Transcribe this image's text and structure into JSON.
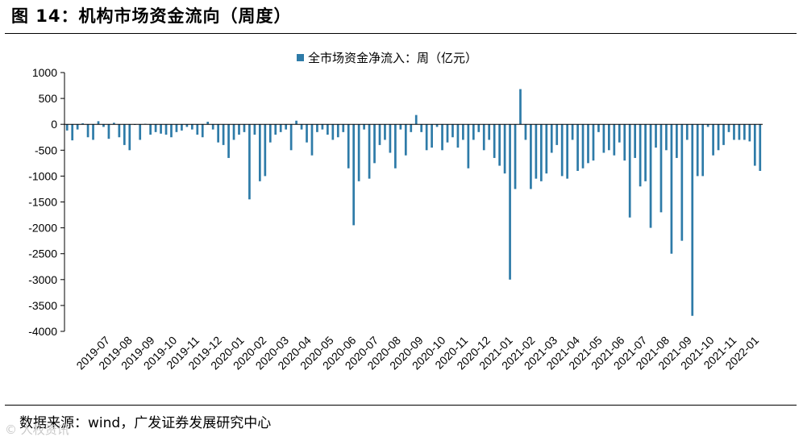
{
  "figure": {
    "title": "图 14：机构市场资金流向（周度）",
    "source": "数据来源：wind，广发证券发展研究中心",
    "watermark": "© 人权资讯"
  },
  "chart_data": {
    "type": "bar",
    "title": "",
    "legend": [
      "全市场资金净流入：周（亿元）"
    ],
    "legend_position": "top-center",
    "xlabel": "",
    "ylabel": "",
    "ylim": [
      -4000,
      1000
    ],
    "yticks": [
      1000,
      500,
      0,
      -500,
      -1000,
      -1500,
      -2000,
      -2500,
      -3000,
      -3500,
      -4000
    ],
    "grid": false,
    "bar_color": "#2E7BA8",
    "x_tick_labels": [
      "2019-07",
      "2019-08",
      "2019-09",
      "2019-10",
      "2019-11",
      "2019-12",
      "2020-01",
      "2020-02",
      "2020-03",
      "2020-04",
      "2020-05",
      "2020-06",
      "2020-07",
      "2020-08",
      "2020-09",
      "2020-10",
      "2020-11",
      "2020-12",
      "2021-01",
      "2021-02",
      "2021-03",
      "2021-04",
      "2021-05",
      "2021-06",
      "2021-07",
      "2021-08",
      "2021-09",
      "2021-10",
      "2021-11",
      "2022-01"
    ],
    "series": [
      {
        "name": "全市场资金净流入：周（亿元）",
        "values": [
          -120,
          -310,
          -100,
          20,
          -250,
          -300,
          60,
          -50,
          -280,
          30,
          -250,
          -400,
          -500,
          -10,
          -300,
          10,
          -200,
          -150,
          -180,
          -200,
          -250,
          -150,
          -120,
          -50,
          -100,
          -200,
          -250,
          50,
          -100,
          -350,
          -400,
          -650,
          -300,
          -200,
          -150,
          -1450,
          -200,
          -1100,
          -1000,
          -350,
          -200,
          -150,
          -100,
          -500,
          70,
          -100,
          -350,
          -600,
          -150,
          -100,
          -200,
          -300,
          -250,
          -150,
          -850,
          -1950,
          -1100,
          -100,
          -1050,
          -750,
          -400,
          -300,
          -550,
          -850,
          -100,
          -600,
          -150,
          180,
          -150,
          -500,
          -450,
          -50,
          -500,
          -350,
          -250,
          -450,
          -300,
          -850,
          -300,
          -150,
          -500,
          -300,
          -650,
          -800,
          -950,
          -3000,
          -1250,
          680,
          -300,
          -1250,
          -1050,
          -1100,
          -950,
          -550,
          -400,
          -1000,
          -1050,
          -300,
          -900,
          -850,
          -750,
          -700,
          -150,
          -550,
          -500,
          -600,
          -350,
          -700,
          -1800,
          -650,
          -1200,
          -1100,
          -2000,
          -450,
          -1700,
          -500,
          -2500,
          -650,
          -2250,
          -300,
          -3700,
          -1000,
          -1000,
          -50,
          -600,
          -500,
          -400,
          -150,
          -300,
          -300,
          -300,
          -330,
          -800,
          -900
        ]
      }
    ]
  }
}
